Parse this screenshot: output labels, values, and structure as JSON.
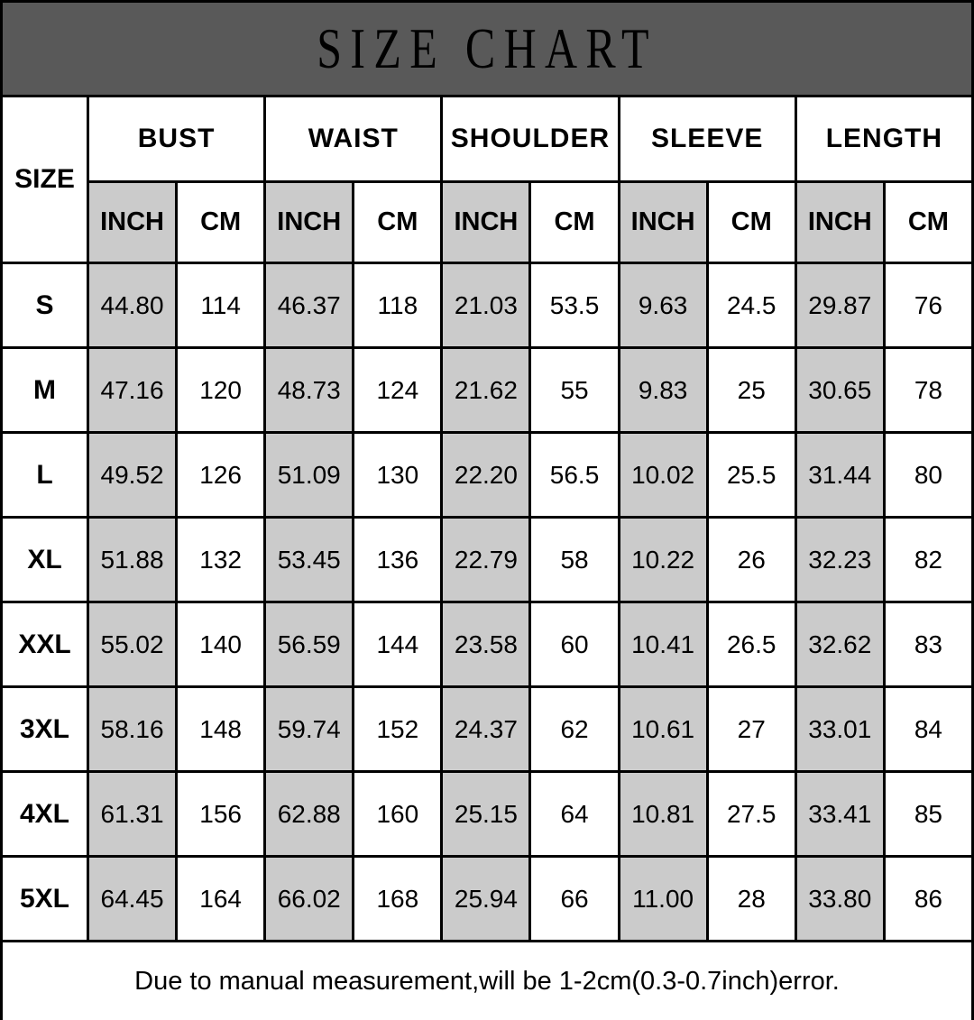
{
  "colors": {
    "title_bar_bg": "#595959",
    "inch_cell_bg": "#cbcbcb",
    "border_color": "#000000",
    "text_color": "#000000",
    "page_bg": "#ffffff"
  },
  "chart_data": {
    "type": "table",
    "title": "SIZE CHART",
    "corner_header": "SIZE",
    "column_groups": [
      "BUST",
      "WAIST",
      "SHOULDER",
      "SLEEVE",
      "LENGTH"
    ],
    "unit_subheaders": [
      "INCH",
      "CM"
    ],
    "columns": [
      "SIZE",
      "BUST INCH",
      "BUST CM",
      "WAIST INCH",
      "WAIST CM",
      "SHOULDER INCH",
      "SHOULDER CM",
      "SLEEVE INCH",
      "SLEEVE CM",
      "LENGTH INCH",
      "LENGTH CM"
    ],
    "rows": [
      {
        "size": "S",
        "values": [
          "44.80",
          "114",
          "46.37",
          "118",
          "21.03",
          "53.5",
          "9.63",
          "24.5",
          "29.87",
          "76"
        ]
      },
      {
        "size": "M",
        "values": [
          "47.16",
          "120",
          "48.73",
          "124",
          "21.62",
          "55",
          "9.83",
          "25",
          "30.65",
          "78"
        ]
      },
      {
        "size": "L",
        "values": [
          "49.52",
          "126",
          "51.09",
          "130",
          "22.20",
          "56.5",
          "10.02",
          "25.5",
          "31.44",
          "80"
        ]
      },
      {
        "size": "XL",
        "values": [
          "51.88",
          "132",
          "53.45",
          "136",
          "22.79",
          "58",
          "10.22",
          "26",
          "32.23",
          "82"
        ]
      },
      {
        "size": "XXL",
        "values": [
          "55.02",
          "140",
          "56.59",
          "144",
          "23.58",
          "60",
          "10.41",
          "26.5",
          "32.62",
          "83"
        ]
      },
      {
        "size": "3XL",
        "values": [
          "58.16",
          "148",
          "59.74",
          "152",
          "24.37",
          "62",
          "10.61",
          "27",
          "33.01",
          "84"
        ]
      },
      {
        "size": "4XL",
        "values": [
          "61.31",
          "156",
          "62.88",
          "160",
          "25.15",
          "64",
          "10.81",
          "27.5",
          "33.41",
          "85"
        ]
      },
      {
        "size": "5XL",
        "values": [
          "64.45",
          "164",
          "66.02",
          "168",
          "25.94",
          "66",
          "11.00",
          "28",
          "33.80",
          "86"
        ]
      }
    ],
    "note": "Due to manual measurement,will be 1-2cm(0.3-0.7inch)error."
  }
}
